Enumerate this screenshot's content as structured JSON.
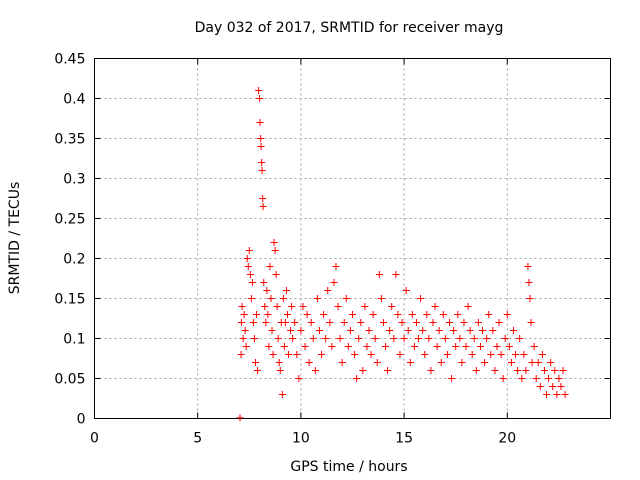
{
  "chart_data": {
    "type": "scatter",
    "title": "Day 032 of 2017, SRMTID for receiver mayg",
    "xlabel": "GPS time / hours",
    "ylabel": "SRMTID / TECUs",
    "xlim": [
      0,
      25
    ],
    "ylim": [
      0,
      0.45
    ],
    "grid": true,
    "marker_color": "#ff0000",
    "xticks": [
      {
        "value": 0,
        "label": "0"
      },
      {
        "value": 5,
        "label": "5"
      },
      {
        "value": 10,
        "label": "10"
      },
      {
        "value": 15,
        "label": "15"
      },
      {
        "value": 20,
        "label": "20"
      }
    ],
    "yticks": [
      {
        "value": 0,
        "label": "0"
      },
      {
        "value": 0.05,
        "label": "0.05"
      },
      {
        "value": 0.1,
        "label": "0.1"
      },
      {
        "value": 0.15,
        "label": "0.15"
      },
      {
        "value": 0.2,
        "label": "0.2"
      },
      {
        "value": 0.25,
        "label": "0.25"
      },
      {
        "value": 0.3,
        "label": "0.3"
      },
      {
        "value": 0.35,
        "label": "0.35"
      },
      {
        "value": 0.4,
        "label": "0.4"
      },
      {
        "value": 0.45,
        "label": "0.45"
      }
    ],
    "series": [
      {
        "name": "SRMTID",
        "marker": "plus",
        "points": [
          [
            7.05,
            0.001
          ],
          [
            7.1,
            0.08
          ],
          [
            7.12,
            0.12
          ],
          [
            7.15,
            0.14
          ],
          [
            7.2,
            0.1
          ],
          [
            7.25,
            0.13
          ],
          [
            7.3,
            0.11
          ],
          [
            7.35,
            0.09
          ],
          [
            7.4,
            0.2
          ],
          [
            7.45,
            0.19
          ],
          [
            7.5,
            0.21
          ],
          [
            7.55,
            0.18
          ],
          [
            7.6,
            0.15
          ],
          [
            7.65,
            0.17
          ],
          [
            7.7,
            0.12
          ],
          [
            7.75,
            0.1
          ],
          [
            7.8,
            0.07
          ],
          [
            7.85,
            0.13
          ],
          [
            7.9,
            0.06
          ],
          [
            7.95,
            0.41
          ],
          [
            8.0,
            0.4
          ],
          [
            8.02,
            0.37
          ],
          [
            8.05,
            0.35
          ],
          [
            8.07,
            0.34
          ],
          [
            8.1,
            0.32
          ],
          [
            8.12,
            0.31
          ],
          [
            8.15,
            0.275
          ],
          [
            8.17,
            0.265
          ],
          [
            8.2,
            0.17
          ],
          [
            8.25,
            0.14
          ],
          [
            8.3,
            0.12
          ],
          [
            8.35,
            0.16
          ],
          [
            8.4,
            0.13
          ],
          [
            8.45,
            0.09
          ],
          [
            8.5,
            0.19
          ],
          [
            8.55,
            0.15
          ],
          [
            8.6,
            0.11
          ],
          [
            8.65,
            0.08
          ],
          [
            8.7,
            0.22
          ],
          [
            8.75,
            0.21
          ],
          [
            8.8,
            0.18
          ],
          [
            8.85,
            0.14
          ],
          [
            8.9,
            0.1
          ],
          [
            8.95,
            0.07
          ],
          [
            9.0,
            0.06
          ],
          [
            9.05,
            0.12
          ],
          [
            9.1,
            0.03
          ],
          [
            9.15,
            0.15
          ],
          [
            9.2,
            0.09
          ],
          [
            9.25,
            0.12
          ],
          [
            9.3,
            0.16
          ],
          [
            9.35,
            0.13
          ],
          [
            9.4,
            0.08
          ],
          [
            9.5,
            0.11
          ],
          [
            9.55,
            0.14
          ],
          [
            9.6,
            0.1
          ],
          [
            9.7,
            0.12
          ],
          [
            9.8,
            0.08
          ],
          [
            9.9,
            0.05
          ],
          [
            10.0,
            0.11
          ],
          [
            10.1,
            0.14
          ],
          [
            10.2,
            0.09
          ],
          [
            10.3,
            0.13
          ],
          [
            10.4,
            0.07
          ],
          [
            10.5,
            0.12
          ],
          [
            10.6,
            0.1
          ],
          [
            10.7,
            0.06
          ],
          [
            10.8,
            0.15
          ],
          [
            10.9,
            0.11
          ],
          [
            11.0,
            0.08
          ],
          [
            11.1,
            0.13
          ],
          [
            11.2,
            0.1
          ],
          [
            11.3,
            0.16
          ],
          [
            11.4,
            0.12
          ],
          [
            11.5,
            0.09
          ],
          [
            11.6,
            0.17
          ],
          [
            11.7,
            0.19
          ],
          [
            11.8,
            0.14
          ],
          [
            11.9,
            0.1
          ],
          [
            12.0,
            0.07
          ],
          [
            12.1,
            0.12
          ],
          [
            12.2,
            0.15
          ],
          [
            12.3,
            0.09
          ],
          [
            12.4,
            0.11
          ],
          [
            12.5,
            0.13
          ],
          [
            12.6,
            0.08
          ],
          [
            12.7,
            0.05
          ],
          [
            12.8,
            0.1
          ],
          [
            12.9,
            0.12
          ],
          [
            13.0,
            0.06
          ],
          [
            13.1,
            0.14
          ],
          [
            13.2,
            0.09
          ],
          [
            13.3,
            0.11
          ],
          [
            13.4,
            0.08
          ],
          [
            13.5,
            0.13
          ],
          [
            13.6,
            0.1
          ],
          [
            13.7,
            0.07
          ],
          [
            13.8,
            0.18
          ],
          [
            13.9,
            0.15
          ],
          [
            14.0,
            0.12
          ],
          [
            14.1,
            0.09
          ],
          [
            14.2,
            0.06
          ],
          [
            14.3,
            0.11
          ],
          [
            14.4,
            0.14
          ],
          [
            14.5,
            0.1
          ],
          [
            14.6,
            0.18
          ],
          [
            14.7,
            0.13
          ],
          [
            14.8,
            0.08
          ],
          [
            14.9,
            0.12
          ],
          [
            15.0,
            0.1
          ],
          [
            15.1,
            0.16
          ],
          [
            15.2,
            0.11
          ],
          [
            15.3,
            0.07
          ],
          [
            15.4,
            0.13
          ],
          [
            15.5,
            0.09
          ],
          [
            15.6,
            0.12
          ],
          [
            15.7,
            0.1
          ],
          [
            15.8,
            0.15
          ],
          [
            15.9,
            0.11
          ],
          [
            16.0,
            0.08
          ],
          [
            16.1,
            0.13
          ],
          [
            16.2,
            0.1
          ],
          [
            16.3,
            0.06
          ],
          [
            16.4,
            0.12
          ],
          [
            16.5,
            0.14
          ],
          [
            16.6,
            0.09
          ],
          [
            16.7,
            0.11
          ],
          [
            16.8,
            0.07
          ],
          [
            16.9,
            0.13
          ],
          [
            17.0,
            0.1
          ],
          [
            17.1,
            0.08
          ],
          [
            17.2,
            0.12
          ],
          [
            17.3,
            0.05
          ],
          [
            17.4,
            0.11
          ],
          [
            17.5,
            0.09
          ],
          [
            17.6,
            0.13
          ],
          [
            17.7,
            0.1
          ],
          [
            17.8,
            0.07
          ],
          [
            17.9,
            0.12
          ],
          [
            18.0,
            0.09
          ],
          [
            18.1,
            0.14
          ],
          [
            18.2,
            0.11
          ],
          [
            18.3,
            0.08
          ],
          [
            18.4,
            0.1
          ],
          [
            18.5,
            0.06
          ],
          [
            18.6,
            0.12
          ],
          [
            18.7,
            0.09
          ],
          [
            18.8,
            0.11
          ],
          [
            18.9,
            0.07
          ],
          [
            19.0,
            0.1
          ],
          [
            19.1,
            0.13
          ],
          [
            19.2,
            0.08
          ],
          [
            19.3,
            0.11
          ],
          [
            19.4,
            0.06
          ],
          [
            19.5,
            0.09
          ],
          [
            19.6,
            0.12
          ],
          [
            19.7,
            0.08
          ],
          [
            19.8,
            0.05
          ],
          [
            19.9,
            0.1
          ],
          [
            20.0,
            0.13
          ],
          [
            20.1,
            0.09
          ],
          [
            20.2,
            0.07
          ],
          [
            20.3,
            0.11
          ],
          [
            20.4,
            0.08
          ],
          [
            20.5,
            0.06
          ],
          [
            20.6,
            0.1
          ],
          [
            20.7,
            0.05
          ],
          [
            20.8,
            0.08
          ],
          [
            20.9,
            0.06
          ],
          [
            21.0,
            0.19
          ],
          [
            21.05,
            0.17
          ],
          [
            21.1,
            0.15
          ],
          [
            21.15,
            0.12
          ],
          [
            21.2,
            0.07
          ],
          [
            21.3,
            0.09
          ],
          [
            21.4,
            0.05
          ],
          [
            21.5,
            0.07
          ],
          [
            21.6,
            0.04
          ],
          [
            21.7,
            0.08
          ],
          [
            21.8,
            0.06
          ],
          [
            21.9,
            0.03
          ],
          [
            22.0,
            0.05
          ],
          [
            22.1,
            0.07
          ],
          [
            22.2,
            0.04
          ],
          [
            22.3,
            0.06
          ],
          [
            22.4,
            0.03
          ],
          [
            22.5,
            0.05
          ],
          [
            22.6,
            0.04
          ],
          [
            22.7,
            0.06
          ],
          [
            22.8,
            0.03
          ]
        ]
      }
    ]
  }
}
